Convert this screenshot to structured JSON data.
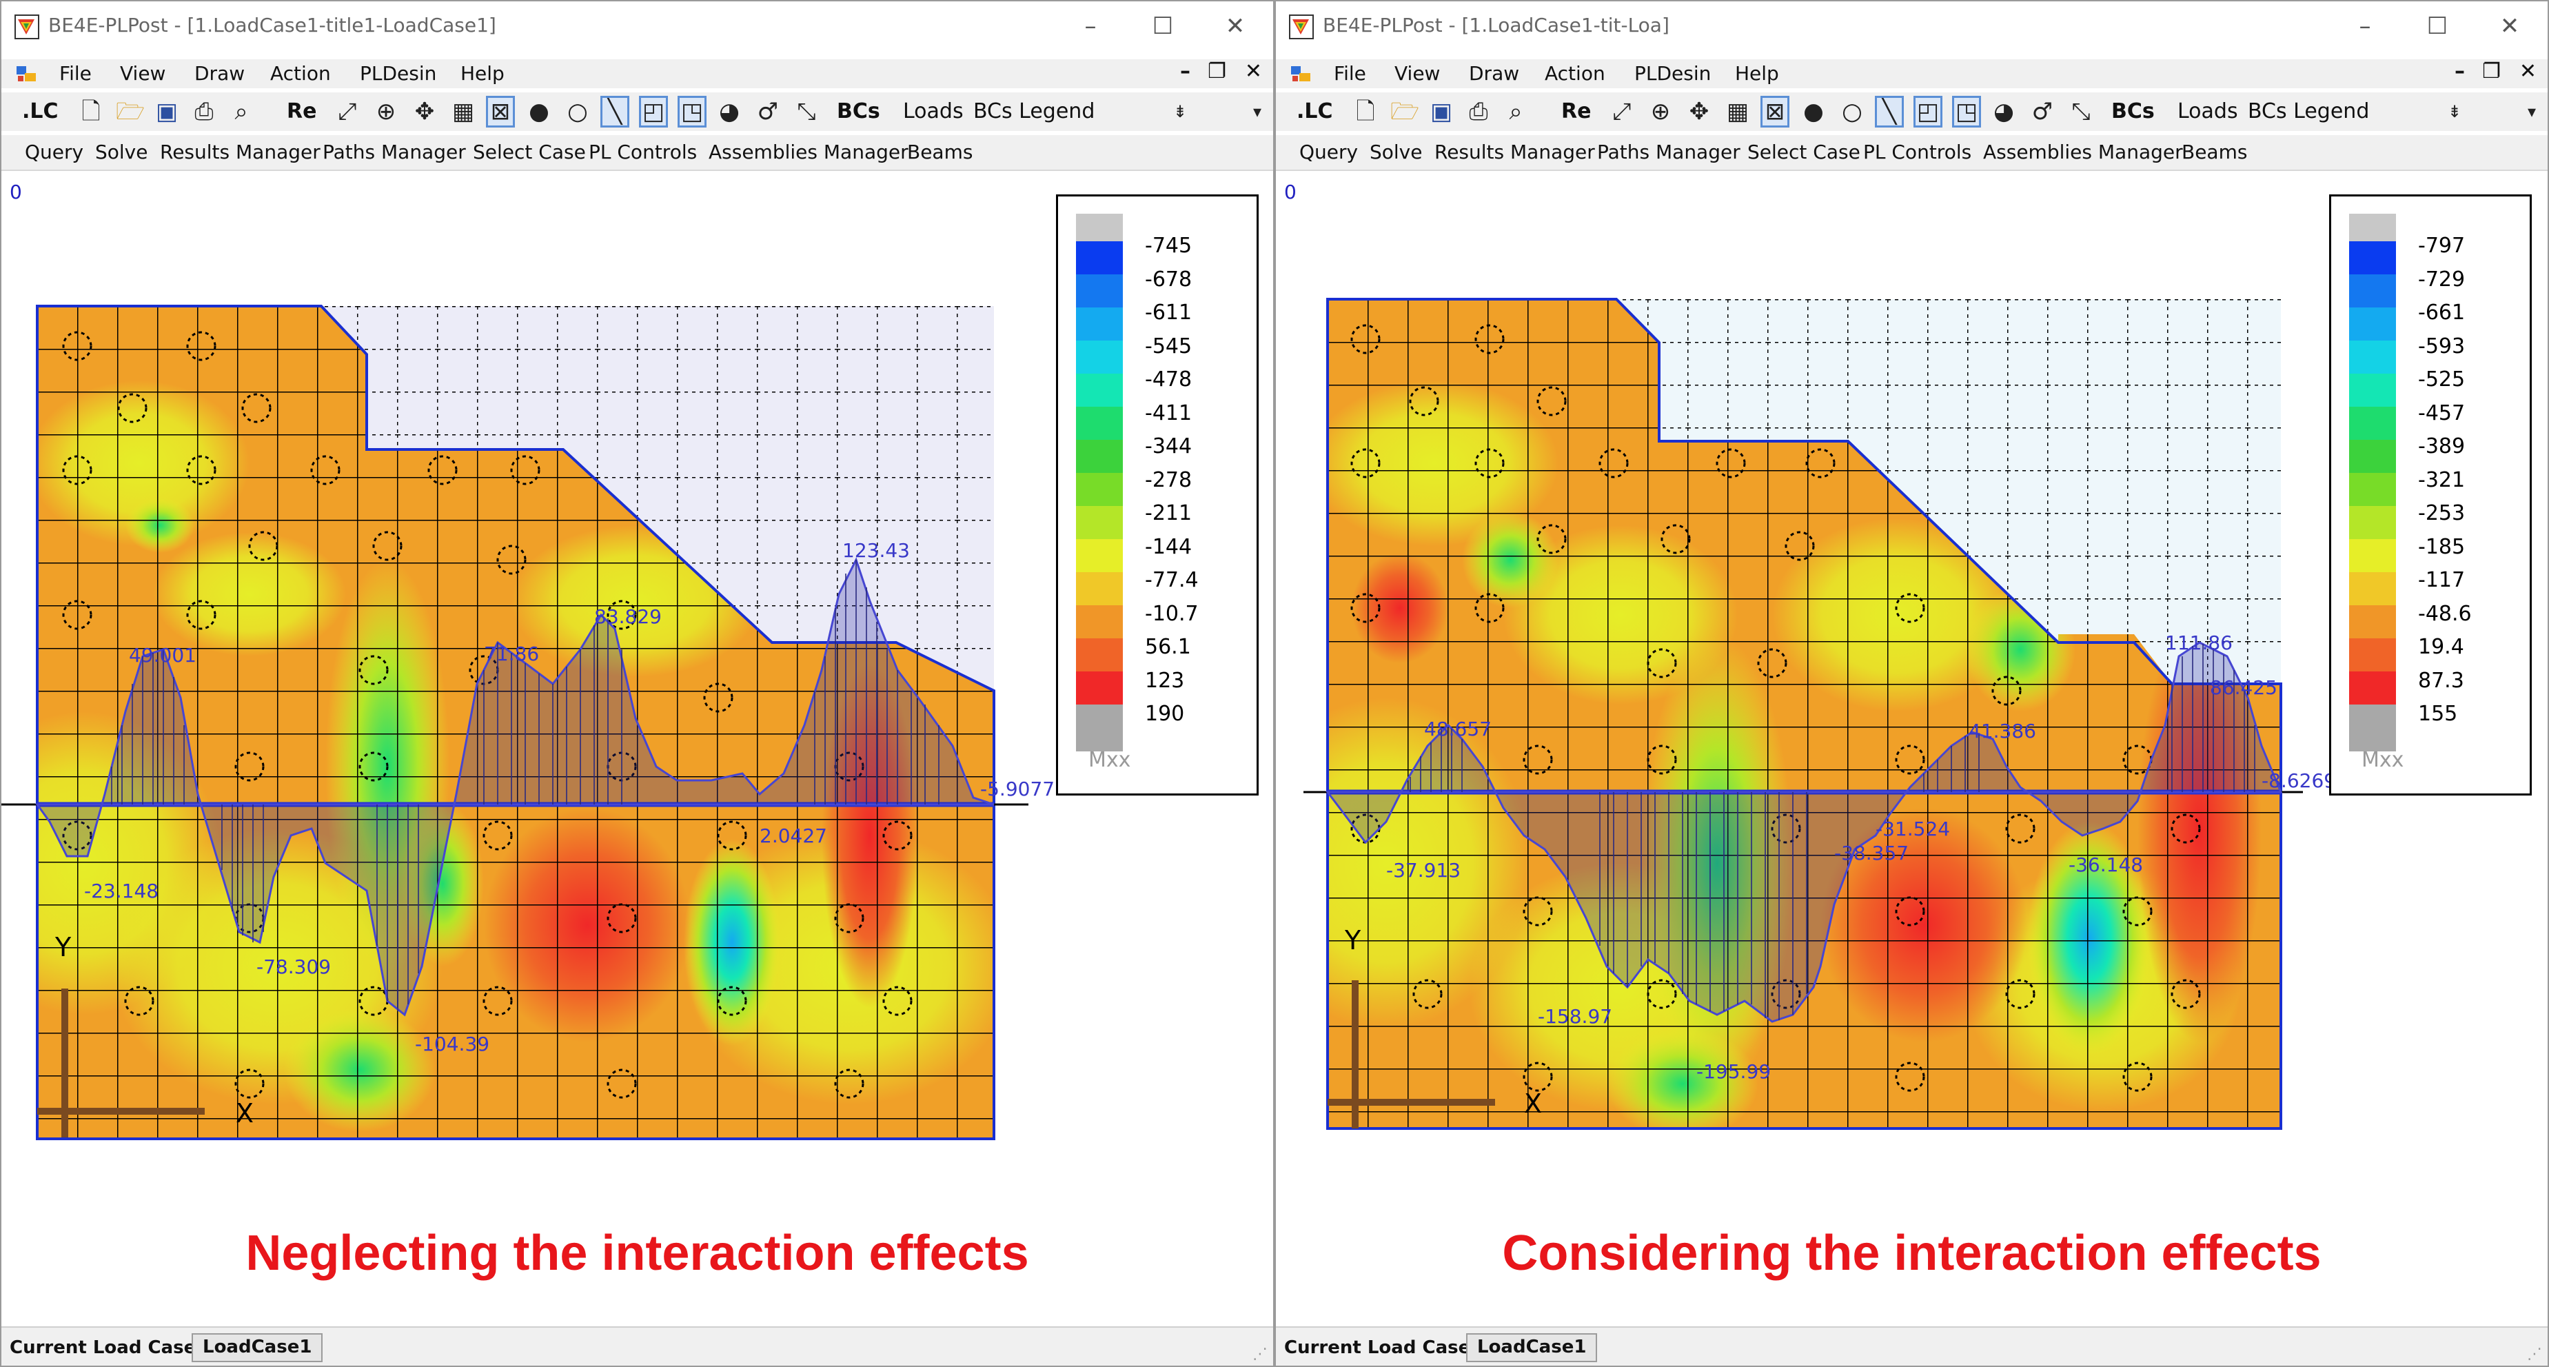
{
  "windows": [
    {
      "title": "BE4E-PLPost - [1.LoadCase1-title1-LoadCase1]",
      "menu": [
        "File",
        "View",
        "Draw",
        "Action",
        "PLDesin",
        "Help"
      ],
      "toolbar": {
        "lc": ".LC",
        "re": "Re",
        "bcs": "BCs",
        "loads": "Loads",
        "bcs_legend": "BCs Legend"
      },
      "toolbar2": [
        "Query",
        "Solve",
        "Results Manager",
        "Paths Manager",
        "Select Case",
        "PL Controls",
        "Assemblies Manager",
        "Beams"
      ],
      "origin_label": "0",
      "legend": {
        "values": [
          "-745",
          "-678",
          "-611",
          "-545",
          "-478",
          "-411",
          "-344",
          "-278",
          "-211",
          "-144",
          "-77.4",
          "-10.7",
          "56.1",
          "123",
          "190"
        ],
        "title": "Mxx"
      },
      "annotations": [
        "49.001",
        "71.86",
        "83.829",
        "123.43",
        "2.0427",
        "-5.9077",
        "-23.148",
        "-78.309",
        "-104.39"
      ],
      "axes": {
        "y": "Y",
        "x": "X"
      },
      "caption": "Neglecting the interaction effects",
      "status": {
        "label": "Current Load Case:",
        "value": "LoadCase1"
      }
    },
    {
      "title": "BE4E-PLPost - [1.LoadCase1-tit-Loa]",
      "menu": [
        "File",
        "View",
        "Draw",
        "Action",
        "PLDesin",
        "Help"
      ],
      "toolbar": {
        "lc": ".LC",
        "re": "Re",
        "bcs": "BCs",
        "loads": "Loads",
        "bcs_legend": "BCs Legend"
      },
      "toolbar2": [
        "Query",
        "Solve",
        "Results Manager",
        "Paths Manager",
        "Select Case",
        "PL Controls",
        "Assemblies Manager",
        "Beams"
      ],
      "origin_label": "0",
      "legend": {
        "values": [
          "-797",
          "-729",
          "-661",
          "-593",
          "-525",
          "-457",
          "-389",
          "-321",
          "-253",
          "-185",
          "-117",
          "-48.6",
          "19.4",
          "87.3",
          "155"
        ],
        "title": "Mxx"
      },
      "annotations": [
        "48.657",
        "41.386",
        "111.86",
        "86.425",
        "-8.6269",
        "-37.913",
        "-38.357",
        "-31.524",
        "-36.148",
        "-158.97",
        "-195.99"
      ],
      "axes": {
        "y": "Y",
        "x": "X"
      },
      "caption": "Considering the interaction effects",
      "status": {
        "label": "Current Load Case:",
        "value": "LoadCase1"
      }
    }
  ],
  "colors": {
    "legend_scale": [
      "#c8c8c8",
      "#0a3cf0",
      "#1478f0",
      "#14aaf0",
      "#14d2e6",
      "#14e6b4",
      "#1edc6e",
      "#3cd23c",
      "#78dc28",
      "#b4e628",
      "#e6ee28",
      "#f0c828",
      "#f09628",
      "#f06428",
      "#f02828",
      "#a8a8a8"
    ],
    "plate_outline": "#1a2fd0",
    "grid": "#000000",
    "caption": "#e8161b",
    "annotation": "#3838c8"
  }
}
